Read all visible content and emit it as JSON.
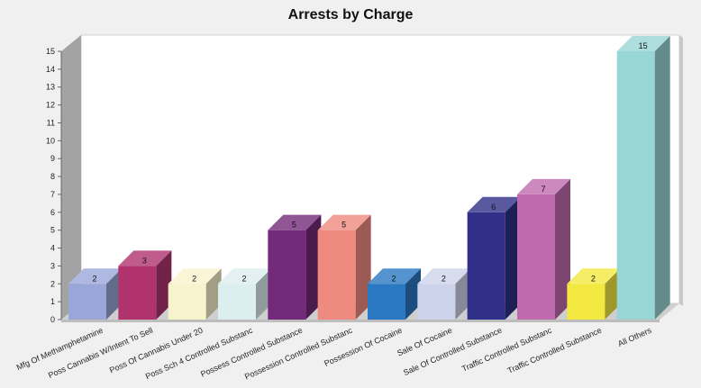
{
  "chart_data": {
    "type": "bar",
    "title": "Arrests by Charge",
    "xlabel": "",
    "ylabel": "",
    "ylim": [
      0,
      15
    ],
    "yticks": [
      0,
      1,
      2,
      3,
      4,
      5,
      6,
      7,
      8,
      9,
      10,
      11,
      12,
      13,
      14,
      15
    ],
    "grid": false,
    "legend": "none",
    "categories": [
      "Mfg Of Methamphetamine",
      "Poss Cannabis W/Intent To Sell",
      "Poss Of Cannabis Under 20",
      "Poss Sch 4 Controlled Substanc",
      "Possess Controlled Substance",
      "Possession Controlled Substanc",
      "Possession Of Cocaine",
      "Sale Of Cocaine",
      "Sale Of Controlled Substance",
      "Traffic Controlled Substanc",
      "Traffic Controlled Substance",
      "All Others"
    ],
    "values": [
      2,
      3,
      2,
      2,
      5,
      5,
      2,
      2,
      6,
      7,
      2,
      15
    ],
    "colors": [
      "#9aa6d8",
      "#b0336e",
      "#f7f3cc",
      "#ddeef0",
      "#742a7a",
      "#ef8a80",
      "#2a78c2",
      "#cdd3ea",
      "#303088",
      "#c06aae",
      "#f3e840",
      "#98d6d6"
    ]
  }
}
